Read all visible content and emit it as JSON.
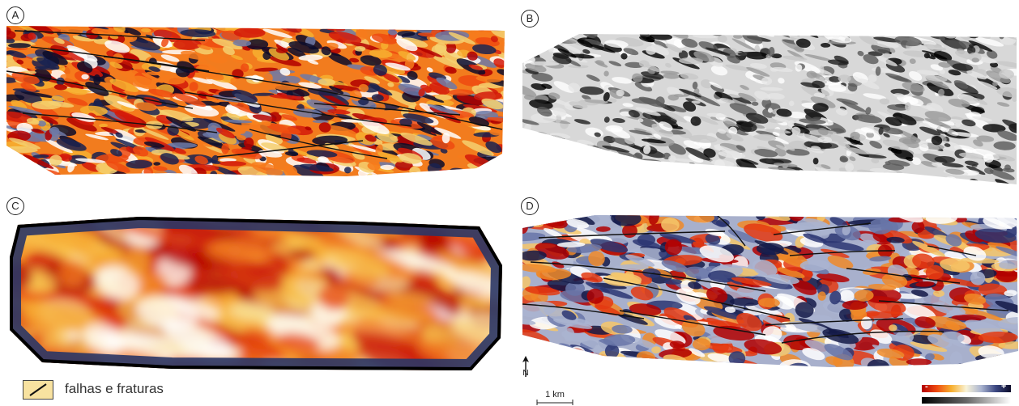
{
  "panels": [
    {
      "id": "A",
      "label": "A",
      "colormap": "heat-red-blue"
    },
    {
      "id": "B",
      "label": "B",
      "colormap": "grayscale"
    },
    {
      "id": "C",
      "label": "C",
      "colormap": "heat-smooth"
    },
    {
      "id": "D",
      "label": "D",
      "colormap": "red-blue-diverging"
    }
  ],
  "legend": {
    "falhas_label": "falhas e fraturas",
    "swatch_color": "#f8e2a0",
    "line_color": "#111111"
  },
  "scale": {
    "label": "1 km"
  },
  "north": {
    "label": "N"
  },
  "colorbar": {
    "minus": "-",
    "plus": "+"
  },
  "colors": {
    "dark_red": "#b20000",
    "orange": "#ee4a10",
    "yellow": "#f7b030",
    "navy": "#1a2250",
    "fault": "#111111"
  }
}
